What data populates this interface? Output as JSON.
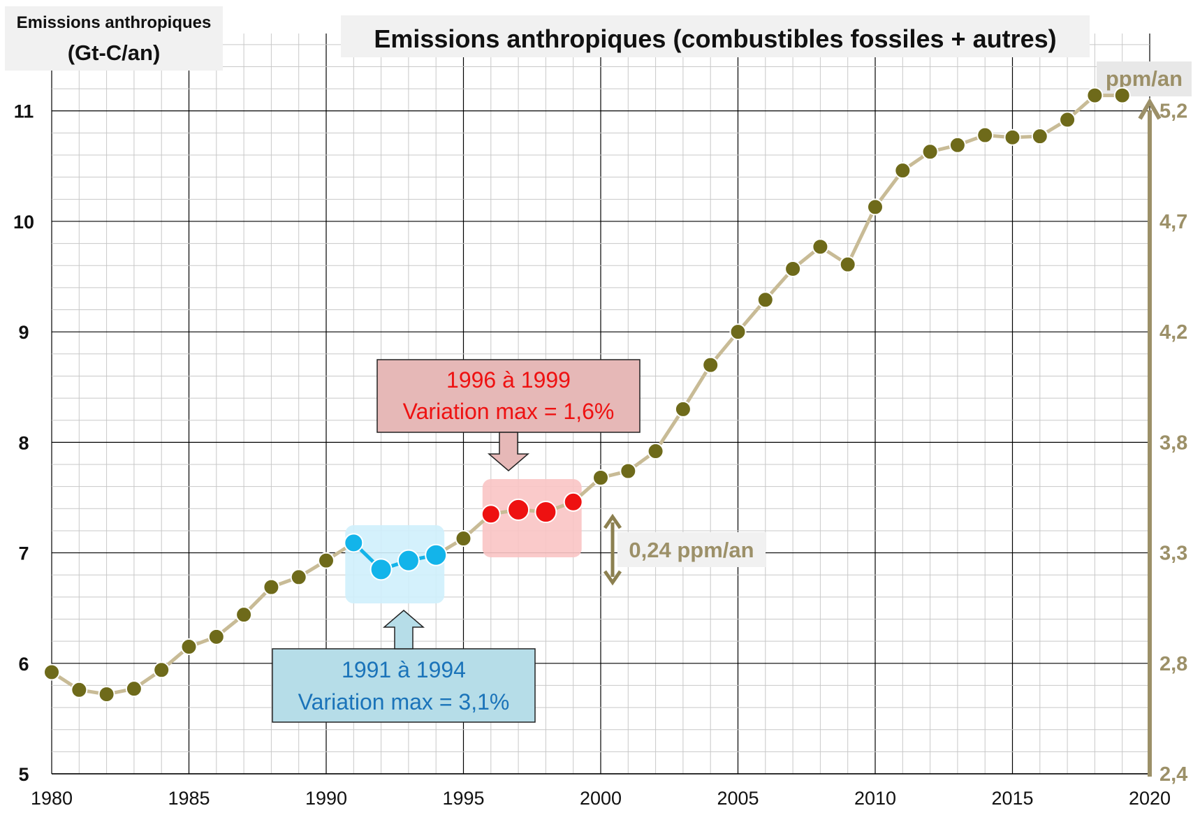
{
  "chart_data": {
    "type": "line",
    "title": "Emissions anthropiques  (combustibles fossiles + autres)",
    "ylabel_line1": "Emissions anthropiques",
    "ylabel_line2": "(Gt-C/an)",
    "y2label": "ppm/an",
    "xlim": [
      1980,
      2020
    ],
    "ylim": [
      5,
      11.7
    ],
    "x_ticks": [
      "1980",
      "1985",
      "1990",
      "1995",
      "2000",
      "2005",
      "2010",
      "2015",
      "2020"
    ],
    "y_ticks": [
      "5",
      "6",
      "7",
      "8",
      "9",
      "10",
      "11"
    ],
    "y2_ticks": [
      "2,4",
      "2,8",
      "3,3",
      "3,8",
      "4,2",
      "4,7",
      "5,2"
    ],
    "grid": true,
    "series": [
      {
        "x": [
          1980,
          1981,
          1982,
          1983,
          1984,
          1985,
          1986,
          1987,
          1988,
          1989,
          1990,
          1991,
          1992,
          1993,
          1994,
          1995,
          1996,
          1997,
          1998,
          1999,
          2000,
          2001,
          2002,
          2003,
          2004,
          2005,
          2006,
          2007,
          2008,
          2009,
          2010,
          2011,
          2012,
          2013,
          2014,
          2015,
          2016,
          2017,
          2018,
          2019
        ],
        "values": [
          5.92,
          5.76,
          5.72,
          5.77,
          5.94,
          6.15,
          6.24,
          6.44,
          6.69,
          6.78,
          6.93,
          7.09,
          6.85,
          6.93,
          6.98,
          7.13,
          7.35,
          7.39,
          7.37,
          7.46,
          7.68,
          7.74,
          7.92,
          8.3,
          8.7,
          9.0,
          9.29,
          9.57,
          9.77,
          9.61,
          10.13,
          10.46,
          10.63,
          10.69,
          10.78,
          10.76,
          10.77,
          10.92,
          11.14,
          11.14
        ]
      }
    ],
    "highlights": [
      {
        "label_line1": "1991 à 1994",
        "label_line2": "Variation max = 3,1%",
        "from": 1991,
        "to": 1994
      },
      {
        "label_line1": "1996 à 1999",
        "label_line2": "Variation max = 1,6%",
        "from": 1996,
        "to": 1999
      }
    ],
    "annotation": "0,24 ppm/an",
    "colors": {
      "line": "#c8bb96",
      "marker": "#6e6a1a",
      "secondary": "#9c9068",
      "blue": "#13b4ea",
      "blue_text": "#1a73b9",
      "blue_box": "#b6dde8",
      "red": "#ee1111",
      "red_text": "#ee1111",
      "red_box": "#e6b8b7"
    }
  }
}
